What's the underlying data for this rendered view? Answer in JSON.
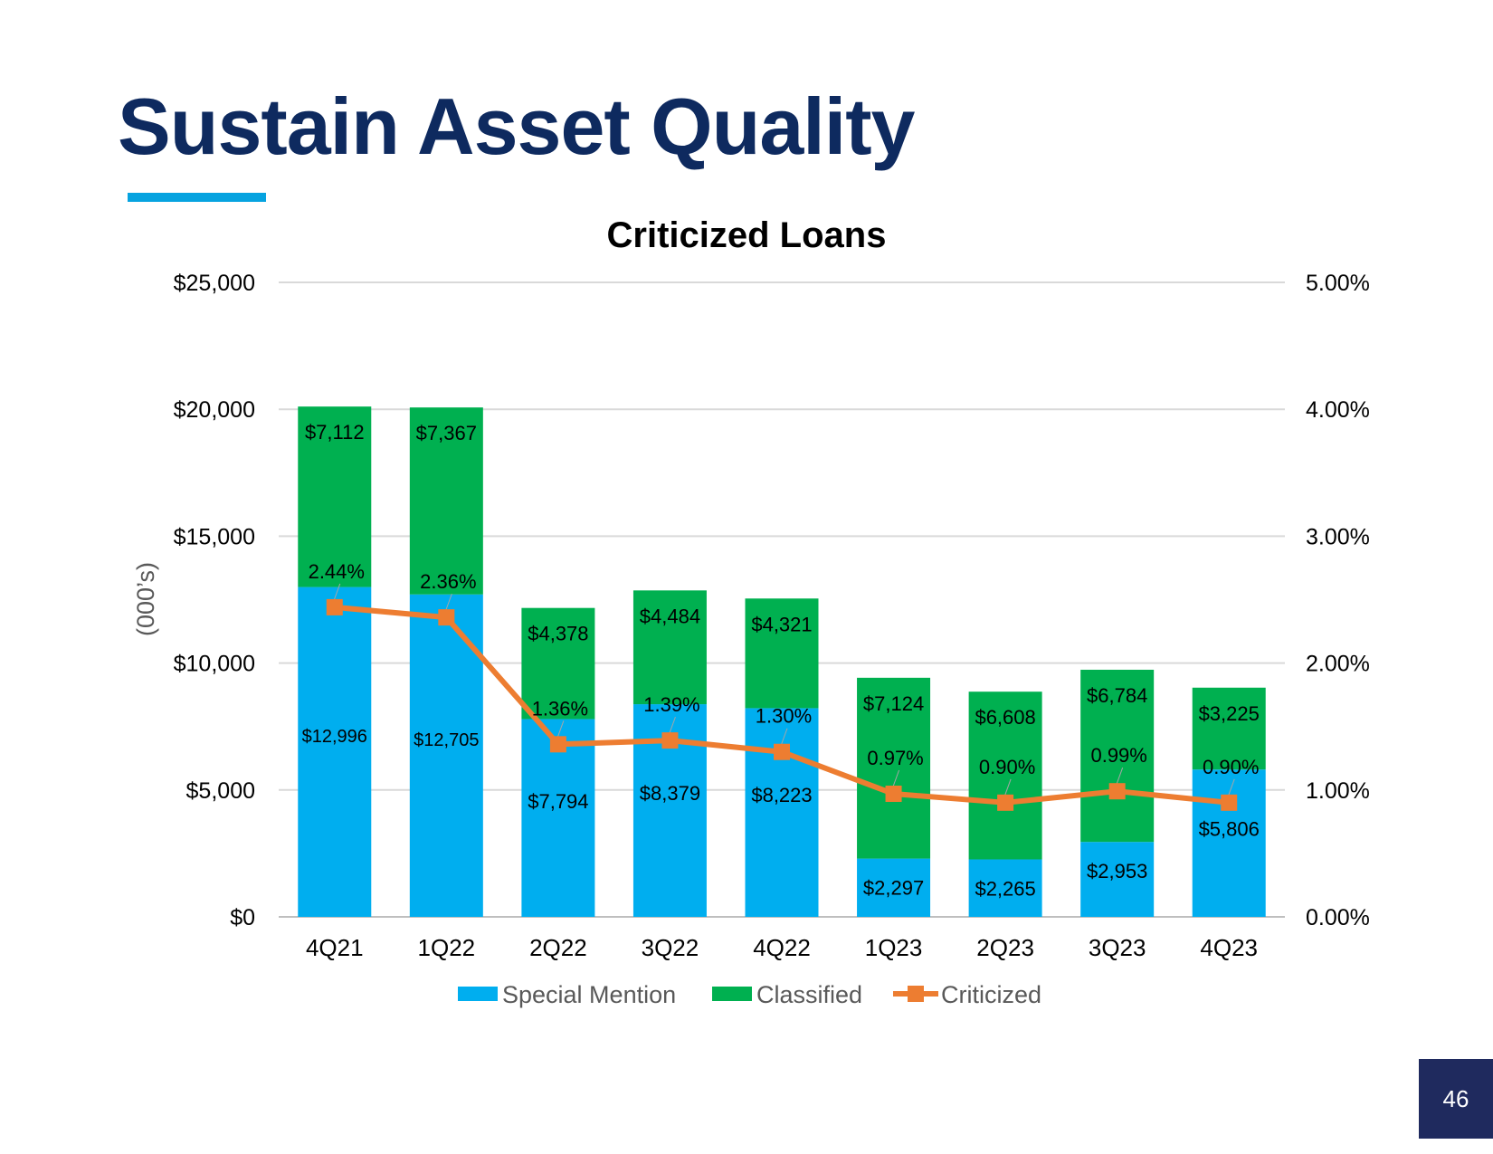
{
  "slide": {
    "title": "Sustain Asset Quality",
    "page_number": "46",
    "colors": {
      "title": "#0e2a5f",
      "accent": "#06a3e0",
      "badge": "#1f2a5e"
    }
  },
  "chart_data": {
    "type": "bar",
    "stacked": true,
    "title": "Criticized Loans",
    "ylabel": "(000’s)",
    "xlabel": "",
    "categories": [
      "4Q21",
      "1Q22",
      "2Q22",
      "3Q22",
      "4Q22",
      "1Q23",
      "2Q23",
      "3Q23",
      "4Q23"
    ],
    "ylim": [
      0,
      25000
    ],
    "yticks": [
      0,
      5000,
      10000,
      15000,
      20000,
      25000
    ],
    "ytick_labels": [
      "$0",
      "$5,000",
      "$10,000",
      "$15,000",
      "$20,000",
      "$25,000"
    ],
    "y2lim": [
      0,
      5
    ],
    "y2ticks": [
      0,
      1,
      2,
      3,
      4,
      5
    ],
    "y2tick_labels": [
      "0.00%",
      "1.00%",
      "2.00%",
      "3.00%",
      "4.00%",
      "5.00%"
    ],
    "grid": true,
    "legend_position": "bottom",
    "series": [
      {
        "name": "Special Mention",
        "kind": "bar",
        "axis": "left",
        "color": "#00aeef",
        "values": [
          12996,
          12705,
          7794,
          8379,
          8223,
          2297,
          2265,
          2953,
          5806
        ],
        "labels": [
          "$12,996",
          "$12,705",
          "$7,794",
          "$8,379",
          "$8,223",
          "$2,297",
          "$2,265",
          "$2,953",
          "$5,806"
        ]
      },
      {
        "name": "Classified",
        "kind": "bar",
        "axis": "left",
        "color": "#00b050",
        "values": [
          7112,
          7367,
          4378,
          4484,
          4321,
          7124,
          6608,
          6784,
          3225
        ],
        "labels": [
          "$7,112",
          "$7,367",
          "$4,378",
          "$4,484",
          "$4,321",
          "$7,124",
          "$6,608",
          "$6,784",
          "$3,225"
        ]
      },
      {
        "name": "Criticized",
        "kind": "line",
        "axis": "right",
        "color": "#ed7d31",
        "values": [
          2.44,
          2.36,
          1.36,
          1.39,
          1.3,
          0.97,
          0.9,
          0.99,
          0.9
        ],
        "labels": [
          "2.44%",
          "2.36%",
          "1.36%",
          "1.39%",
          "1.30%",
          "0.97%",
          "0.90%",
          "0.99%",
          "0.90%"
        ]
      }
    ]
  }
}
